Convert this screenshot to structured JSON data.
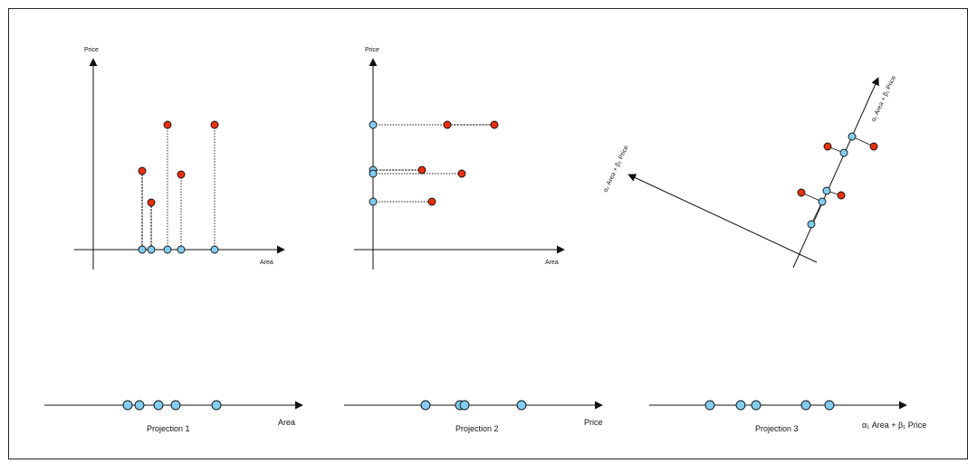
{
  "colors": {
    "red": "#e83010",
    "blue": "#82cdf0",
    "stroke": "#111111"
  },
  "panel1": {
    "ylabel": "Price",
    "xlabel": "Area"
  },
  "panel2": {
    "ylabel": "Price",
    "xlabel": "Area"
  },
  "panel3": {
    "axis1_label": "α₁ Area + β₁ Price",
    "axis2_label": "α₂ Area + β₂ Price"
  },
  "projections": [
    {
      "caption": "Projection 1",
      "axis_label": "Area"
    },
    {
      "caption": "Projection 2",
      "axis_label": "Price"
    },
    {
      "caption": "Projection 3",
      "axis_label": "α₁ Area + β₁ Price"
    }
  ]
}
